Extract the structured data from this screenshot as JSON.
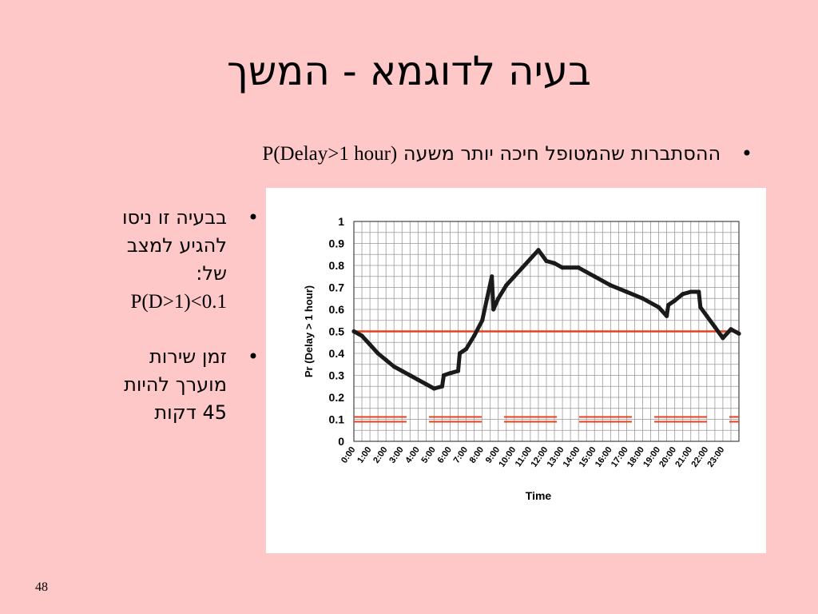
{
  "slide": {
    "title": "בעיה לדוגמא - המשך",
    "top_bullet": {
      "text": "ההסתברות שהמטופל חיכה יותר משעה",
      "formula": "P(Delay>1 hour)"
    },
    "side_bullets": [
      {
        "lines": [
          "בבעיה זו ניסו",
          "להגיע למצב",
          "של:"
        ],
        "formula": "P(D>1)<0.1"
      },
      {
        "lines": [
          "זמן שירות",
          "מוערך להיות",
          "45 דקות"
        ]
      }
    ],
    "page_number": "48"
  },
  "colors": {
    "background": "#ffc8c8",
    "threshold_line": "#e8401e",
    "curve": "#1a1a1a",
    "grid": "#9a9a9a"
  },
  "chart_data": {
    "type": "line",
    "title": "",
    "xlabel": "Time",
    "ylabel": "Pr (Delay > 1 hour)",
    "ylim": [
      0,
      1
    ],
    "xlim": [
      0,
      24
    ],
    "yticks": [
      "0",
      "0.1",
      "0.2",
      "0.3",
      "0.4",
      "0.5",
      "0.6",
      "0.7",
      "0.8",
      "0.9",
      "1"
    ],
    "xticks": [
      "0:00",
      "1:00",
      "2:00",
      "3:00",
      "4:00",
      "5:00",
      "6:00",
      "7:00",
      "8:00",
      "9:00",
      "10:00",
      "11:00",
      "12:00",
      "13:00",
      "14:00",
      "15:00",
      "16:00",
      "17:00",
      "18:00",
      "19:00",
      "20:00",
      "21:00",
      "22:00",
      "23:00"
    ],
    "grid": true,
    "series": [
      {
        "x": [
          0,
          0.5,
          1,
          1.5,
          2,
          2.5,
          3,
          3.5,
          4,
          4.5,
          5,
          5.5,
          5.6,
          6.0,
          6.5,
          6.6,
          7.0,
          7.5,
          8.0,
          8.3,
          8.6,
          8.7,
          9.0,
          9.5,
          10,
          10.5,
          11,
          11.5,
          12,
          12.5,
          13,
          14,
          15,
          16,
          17,
          18,
          19,
          19.5,
          19.6,
          20,
          20.5,
          21,
          21.5,
          21.6,
          22,
          22.5,
          23,
          23.5,
          24
        ],
        "y": [
          0.5,
          0.48,
          0.44,
          0.4,
          0.37,
          0.34,
          0.32,
          0.3,
          0.28,
          0.26,
          0.24,
          0.25,
          0.3,
          0.31,
          0.32,
          0.4,
          0.42,
          0.48,
          0.55,
          0.65,
          0.75,
          0.6,
          0.65,
          0.71,
          0.75,
          0.79,
          0.83,
          0.87,
          0.82,
          0.81,
          0.79,
          0.79,
          0.75,
          0.71,
          0.68,
          0.65,
          0.61,
          0.57,
          0.62,
          0.64,
          0.67,
          0.68,
          0.68,
          0.61,
          0.57,
          0.52,
          0.47,
          0.51,
          0.49
        ]
      }
    ],
    "threshold_lines": [
      {
        "y": 0.5,
        "style": "solid"
      },
      {
        "y": 0.1,
        "style": "dashed-double"
      }
    ]
  }
}
